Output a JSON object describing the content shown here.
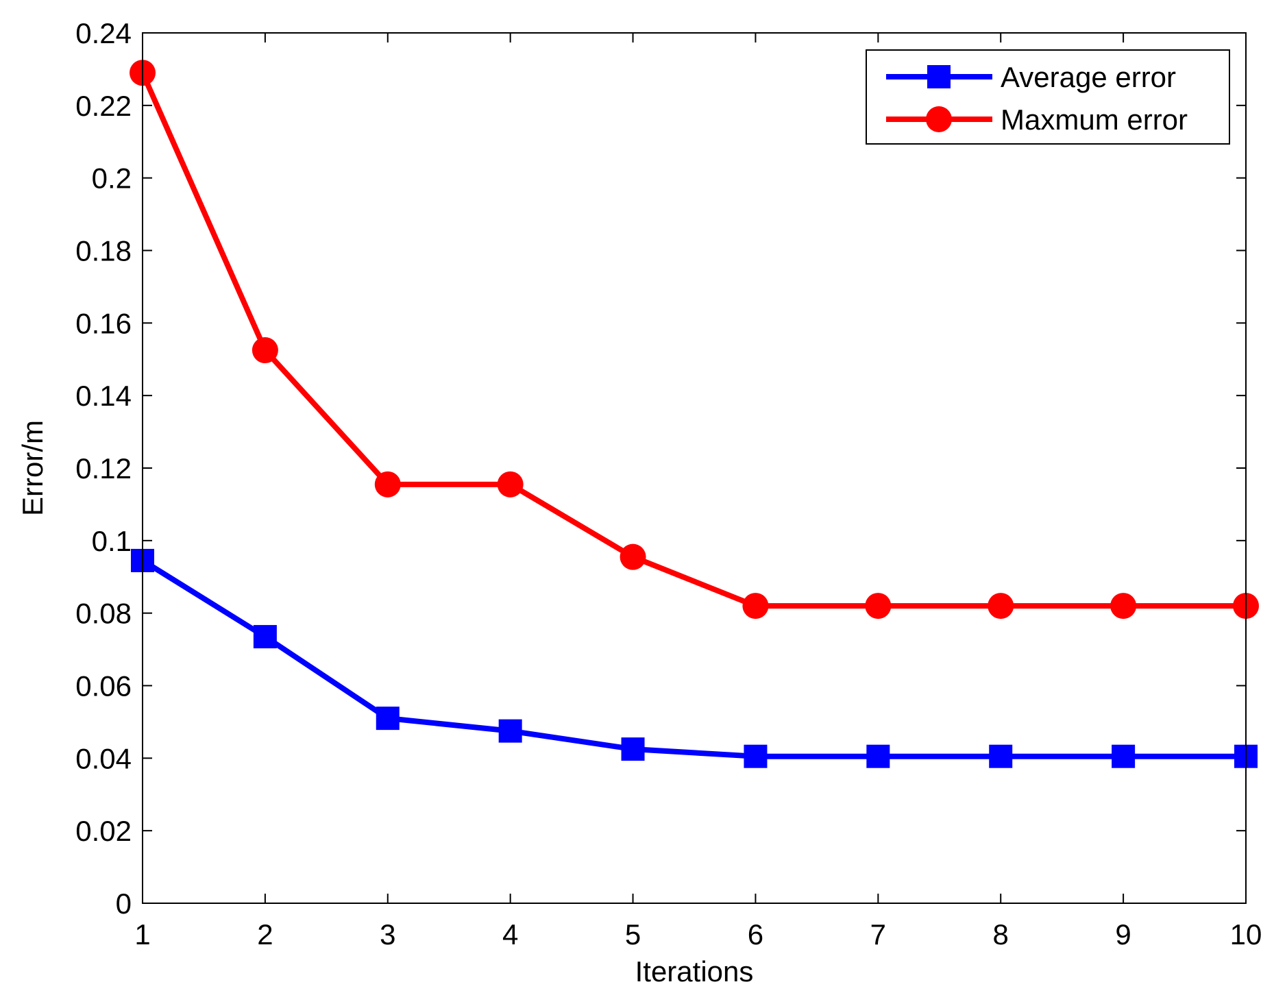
{
  "chart_data": {
    "type": "line",
    "title": "",
    "xlabel": "Iterations",
    "ylabel": "Error/m",
    "x": [
      1,
      2,
      3,
      4,
      5,
      6,
      7,
      8,
      9,
      10
    ],
    "xlim": [
      1,
      10
    ],
    "ylim": [
      0,
      0.24
    ],
    "xticks": [
      "1",
      "2",
      "3",
      "4",
      "5",
      "6",
      "7",
      "8",
      "9",
      "10"
    ],
    "yticks": [
      "0",
      "0.02",
      "0.04",
      "0.06",
      "0.08",
      "0.1",
      "0.12",
      "0.14",
      "0.16",
      "0.18",
      "0.2",
      "0.22",
      "0.24"
    ],
    "grid": false,
    "legend_position": "top-right",
    "series": [
      {
        "name": "Average error",
        "marker": "square",
        "color": "#0000ff",
        "values": [
          0.0945,
          0.0735,
          0.051,
          0.0475,
          0.0425,
          0.0405,
          0.0405,
          0.0405,
          0.0405,
          0.0405
        ]
      },
      {
        "name": "Maxmum error",
        "marker": "circle",
        "color": "#ff0000",
        "values": [
          0.229,
          0.1525,
          0.1155,
          0.1155,
          0.0955,
          0.082,
          0.082,
          0.082,
          0.082,
          0.082
        ]
      }
    ]
  }
}
